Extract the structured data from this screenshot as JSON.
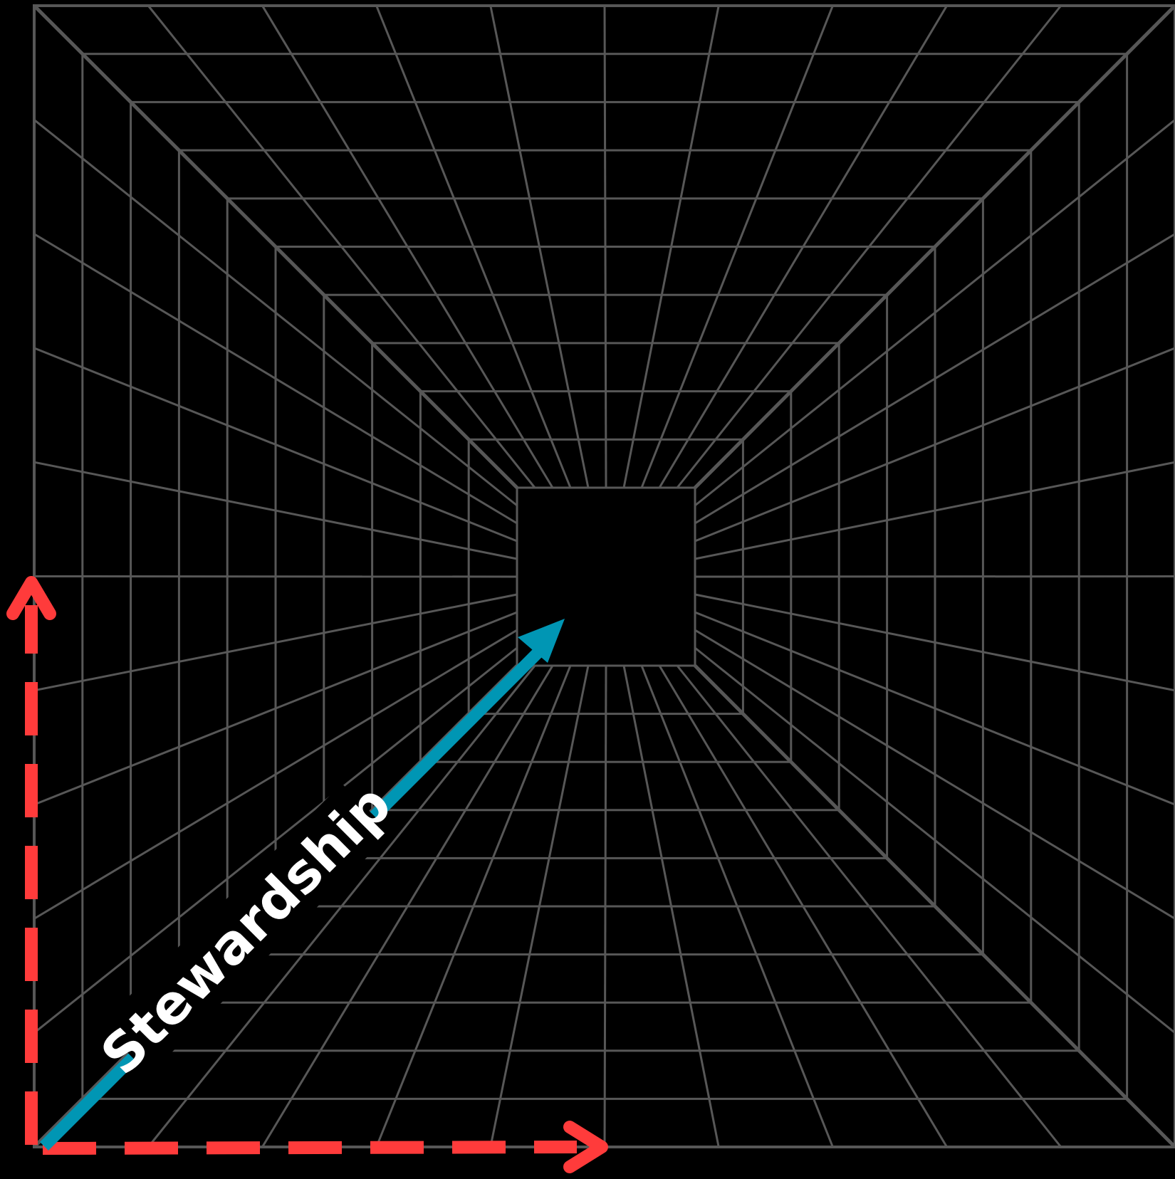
{
  "diagram": {
    "grid": {
      "divisions": 10,
      "depth_rings": 11
    },
    "label": "Stewardship",
    "colors": {
      "background": "#000000",
      "grid": "#575757",
      "axis_dashed": "#ff3b3b",
      "arrow": "#0096b4",
      "label_text": "#ffffff"
    }
  }
}
